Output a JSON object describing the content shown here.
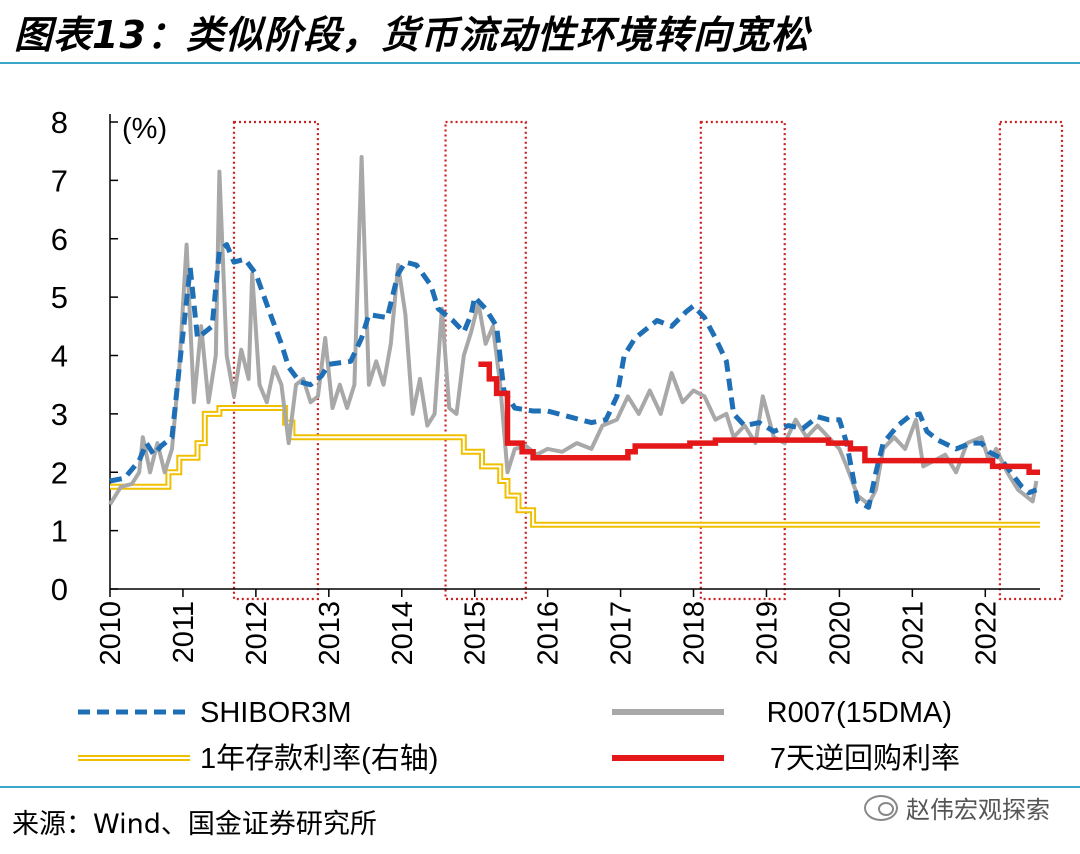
{
  "header": {
    "title": "图表13：类似阶段，货币流动性环境转向宽松"
  },
  "footer": {
    "source": "来源：Wind、国金证券研究所",
    "watermark": "赵伟宏观探索"
  },
  "chart_data": {
    "type": "line",
    "title": "图表13：类似阶段，货币流动性环境转向宽松",
    "unit_label": "(%)",
    "xlim": [
      2010,
      2022.75
    ],
    "ylim": [
      0,
      8
    ],
    "xticks": [
      "2010",
      "2011",
      "2012",
      "2013",
      "2014",
      "2015",
      "2016",
      "2017",
      "2018",
      "2019",
      "2020",
      "2021",
      "2022"
    ],
    "yticks": [
      "0",
      "1",
      "2",
      "3",
      "4",
      "5",
      "6",
      "7",
      "8"
    ],
    "grid": false,
    "legend_position": "bottom",
    "highlight_periods": [
      [
        2011.7,
        2012.85
      ],
      [
        2014.6,
        2015.7
      ],
      [
        2018.1,
        2019.25
      ],
      [
        2022.2,
        2023.1
      ]
    ],
    "highlight_color": "#cc1f1f",
    "series": [
      {
        "name": "SHIBOR3M",
        "color": "#1f6fb6",
        "style": "dashed",
        "points": [
          [
            2010.0,
            1.85
          ],
          [
            2010.2,
            1.9
          ],
          [
            2010.4,
            2.2
          ],
          [
            2010.5,
            2.5
          ],
          [
            2010.6,
            2.3
          ],
          [
            2010.7,
            2.45
          ],
          [
            2010.85,
            2.6
          ],
          [
            2010.95,
            3.8
          ],
          [
            2011.1,
            5.5
          ],
          [
            2011.2,
            4.3
          ],
          [
            2011.4,
            4.5
          ],
          [
            2011.5,
            5.8
          ],
          [
            2011.6,
            5.9
          ],
          [
            2011.7,
            5.6
          ],
          [
            2011.85,
            5.65
          ],
          [
            2012.0,
            5.4
          ],
          [
            2012.2,
            4.7
          ],
          [
            2012.35,
            4.2
          ],
          [
            2012.45,
            3.8
          ],
          [
            2012.6,
            3.55
          ],
          [
            2012.75,
            3.5
          ],
          [
            2012.9,
            3.65
          ],
          [
            2013.0,
            3.85
          ],
          [
            2013.3,
            3.9
          ],
          [
            2013.45,
            4.3
          ],
          [
            2013.55,
            4.7
          ],
          [
            2013.8,
            4.65
          ],
          [
            2013.95,
            5.4
          ],
          [
            2014.05,
            5.6
          ],
          [
            2014.2,
            5.55
          ],
          [
            2014.4,
            5.2
          ],
          [
            2014.5,
            4.8
          ],
          [
            2014.7,
            4.6
          ],
          [
            2014.85,
            4.4
          ],
          [
            2014.95,
            4.7
          ],
          [
            2015.0,
            5.0
          ],
          [
            2015.15,
            4.8
          ],
          [
            2015.3,
            4.5
          ],
          [
            2015.4,
            3.4
          ],
          [
            2015.55,
            3.1
          ],
          [
            2015.8,
            3.05
          ],
          [
            2016.0,
            3.05
          ],
          [
            2016.3,
            2.95
          ],
          [
            2016.6,
            2.85
          ],
          [
            2016.8,
            2.9
          ],
          [
            2016.95,
            3.3
          ],
          [
            2017.05,
            4.0
          ],
          [
            2017.2,
            4.3
          ],
          [
            2017.4,
            4.5
          ],
          [
            2017.5,
            4.6
          ],
          [
            2017.7,
            4.5
          ],
          [
            2017.9,
            4.75
          ],
          [
            2018.0,
            4.85
          ],
          [
            2018.15,
            4.65
          ],
          [
            2018.3,
            4.3
          ],
          [
            2018.45,
            3.9
          ],
          [
            2018.55,
            3.0
          ],
          [
            2018.7,
            2.8
          ],
          [
            2018.9,
            2.85
          ],
          [
            2019.1,
            2.7
          ],
          [
            2019.3,
            2.8
          ],
          [
            2019.5,
            2.75
          ],
          [
            2019.7,
            2.95
          ],
          [
            2019.85,
            2.9
          ],
          [
            2020.0,
            2.9
          ],
          [
            2020.1,
            2.5
          ],
          [
            2020.25,
            1.5
          ],
          [
            2020.4,
            1.4
          ],
          [
            2020.5,
            2.0
          ],
          [
            2020.6,
            2.5
          ],
          [
            2020.8,
            2.8
          ],
          [
            2020.95,
            2.95
          ],
          [
            2021.1,
            3.0
          ],
          [
            2021.2,
            2.7
          ],
          [
            2021.35,
            2.55
          ],
          [
            2021.6,
            2.4
          ],
          [
            2021.8,
            2.5
          ],
          [
            2021.95,
            2.5
          ],
          [
            2022.05,
            2.35
          ],
          [
            2022.2,
            2.25
          ],
          [
            2022.35,
            2.0
          ],
          [
            2022.5,
            1.75
          ],
          [
            2022.6,
            1.65
          ],
          [
            2022.7,
            1.7
          ]
        ]
      },
      {
        "name": "R007(15DMA)",
        "color": "#a8a8a8",
        "style": "solid",
        "points": [
          [
            2010.0,
            1.45
          ],
          [
            2010.15,
            1.75
          ],
          [
            2010.3,
            1.8
          ],
          [
            2010.4,
            2.0
          ],
          [
            2010.45,
            2.6
          ],
          [
            2010.55,
            2.0
          ],
          [
            2010.65,
            2.5
          ],
          [
            2010.75,
            2.0
          ],
          [
            2010.85,
            2.4
          ],
          [
            2010.95,
            3.8
          ],
          [
            2011.05,
            5.9
          ],
          [
            2011.15,
            3.2
          ],
          [
            2011.25,
            4.5
          ],
          [
            2011.35,
            3.2
          ],
          [
            2011.45,
            4.0
          ],
          [
            2011.5,
            7.15
          ],
          [
            2011.6,
            4.0
          ],
          [
            2011.7,
            3.3
          ],
          [
            2011.8,
            4.1
          ],
          [
            2011.9,
            3.6
          ],
          [
            2011.95,
            5.4
          ],
          [
            2012.05,
            3.5
          ],
          [
            2012.15,
            3.2
          ],
          [
            2012.25,
            3.8
          ],
          [
            2012.35,
            3.5
          ],
          [
            2012.45,
            2.5
          ],
          [
            2012.55,
            3.5
          ],
          [
            2012.65,
            3.6
          ],
          [
            2012.75,
            3.2
          ],
          [
            2012.85,
            3.3
          ],
          [
            2012.95,
            4.3
          ],
          [
            2013.05,
            3.1
          ],
          [
            2013.15,
            3.5
          ],
          [
            2013.25,
            3.1
          ],
          [
            2013.35,
            3.5
          ],
          [
            2013.45,
            7.4
          ],
          [
            2013.55,
            3.5
          ],
          [
            2013.65,
            3.9
          ],
          [
            2013.75,
            3.5
          ],
          [
            2013.85,
            4.2
          ],
          [
            2013.95,
            5.55
          ],
          [
            2014.05,
            4.7
          ],
          [
            2014.15,
            3.0
          ],
          [
            2014.25,
            3.6
          ],
          [
            2014.35,
            2.8
          ],
          [
            2014.45,
            3.0
          ],
          [
            2014.55,
            4.8
          ],
          [
            2014.65,
            3.1
          ],
          [
            2014.75,
            3.0
          ],
          [
            2014.85,
            4.0
          ],
          [
            2014.95,
            4.4
          ],
          [
            2015.05,
            4.9
          ],
          [
            2015.15,
            4.2
          ],
          [
            2015.25,
            4.5
          ],
          [
            2015.35,
            3.5
          ],
          [
            2015.45,
            2.0
          ],
          [
            2015.55,
            2.4
          ],
          [
            2015.7,
            2.45
          ],
          [
            2015.85,
            2.3
          ],
          [
            2016.0,
            2.4
          ],
          [
            2016.2,
            2.35
          ],
          [
            2016.4,
            2.5
          ],
          [
            2016.6,
            2.4
          ],
          [
            2016.75,
            2.8
          ],
          [
            2016.95,
            2.9
          ],
          [
            2017.1,
            3.3
          ],
          [
            2017.25,
            3.0
          ],
          [
            2017.4,
            3.4
          ],
          [
            2017.55,
            3.0
          ],
          [
            2017.7,
            3.7
          ],
          [
            2017.85,
            3.2
          ],
          [
            2018.0,
            3.4
          ],
          [
            2018.15,
            3.3
          ],
          [
            2018.3,
            2.9
          ],
          [
            2018.45,
            3.0
          ],
          [
            2018.55,
            2.6
          ],
          [
            2018.7,
            2.8
          ],
          [
            2018.85,
            2.5
          ],
          [
            2018.95,
            3.3
          ],
          [
            2019.1,
            2.6
          ],
          [
            2019.25,
            2.5
          ],
          [
            2019.4,
            2.9
          ],
          [
            2019.55,
            2.6
          ],
          [
            2019.7,
            2.8
          ],
          [
            2019.85,
            2.6
          ],
          [
            2020.0,
            2.4
          ],
          [
            2020.1,
            2.1
          ],
          [
            2020.25,
            1.6
          ],
          [
            2020.4,
            1.45
          ],
          [
            2020.5,
            1.7
          ],
          [
            2020.6,
            2.4
          ],
          [
            2020.75,
            2.6
          ],
          [
            2020.9,
            2.4
          ],
          [
            2021.05,
            2.9
          ],
          [
            2021.15,
            2.1
          ],
          [
            2021.3,
            2.2
          ],
          [
            2021.45,
            2.3
          ],
          [
            2021.6,
            2.0
          ],
          [
            2021.75,
            2.5
          ],
          [
            2021.95,
            2.6
          ],
          [
            2022.05,
            2.2
          ],
          [
            2022.15,
            2.4
          ],
          [
            2022.3,
            2.0
          ],
          [
            2022.45,
            1.7
          ],
          [
            2022.55,
            1.6
          ],
          [
            2022.65,
            1.5
          ],
          [
            2022.7,
            1.85
          ]
        ]
      },
      {
        "name": "1年存款利率(右轴)",
        "color": "#f0c000",
        "style": "double",
        "points": [
          [
            2010.0,
            1.75
          ],
          [
            2010.8,
            1.75
          ],
          [
            2010.8,
            2.0
          ],
          [
            2010.95,
            2.0
          ],
          [
            2010.95,
            2.25
          ],
          [
            2011.2,
            2.25
          ],
          [
            2011.2,
            2.5
          ],
          [
            2011.3,
            2.5
          ],
          [
            2011.3,
            3.0
          ],
          [
            2011.5,
            3.0
          ],
          [
            2011.5,
            3.1
          ],
          [
            2012.4,
            3.1
          ],
          [
            2012.4,
            2.85
          ],
          [
            2012.5,
            2.85
          ],
          [
            2012.5,
            2.6
          ],
          [
            2014.85,
            2.6
          ],
          [
            2014.85,
            2.35
          ],
          [
            2015.1,
            2.35
          ],
          [
            2015.1,
            2.1
          ],
          [
            2015.35,
            2.1
          ],
          [
            2015.35,
            1.85
          ],
          [
            2015.45,
            1.85
          ],
          [
            2015.45,
            1.6
          ],
          [
            2015.6,
            1.6
          ],
          [
            2015.6,
            1.35
          ],
          [
            2015.8,
            1.35
          ],
          [
            2015.8,
            1.1
          ],
          [
            2022.75,
            1.1
          ]
        ]
      },
      {
        "name": "7天逆回购利率",
        "color": "#e41818",
        "style": "solid",
        "points": [
          [
            2015.05,
            3.85
          ],
          [
            2015.2,
            3.85
          ],
          [
            2015.2,
            3.6
          ],
          [
            2015.3,
            3.6
          ],
          [
            2015.3,
            3.35
          ],
          [
            2015.45,
            3.35
          ],
          [
            2015.45,
            2.5
          ],
          [
            2015.65,
            2.5
          ],
          [
            2015.65,
            2.35
          ],
          [
            2015.8,
            2.35
          ],
          [
            2015.8,
            2.25
          ],
          [
            2017.1,
            2.25
          ],
          [
            2017.1,
            2.35
          ],
          [
            2017.2,
            2.35
          ],
          [
            2017.2,
            2.45
          ],
          [
            2017.95,
            2.45
          ],
          [
            2017.95,
            2.5
          ],
          [
            2018.3,
            2.5
          ],
          [
            2018.3,
            2.55
          ],
          [
            2019.85,
            2.55
          ],
          [
            2019.85,
            2.5
          ],
          [
            2020.15,
            2.5
          ],
          [
            2020.15,
            2.4
          ],
          [
            2020.35,
            2.4
          ],
          [
            2020.35,
            2.2
          ],
          [
            2022.1,
            2.2
          ],
          [
            2022.1,
            2.1
          ],
          [
            2022.6,
            2.1
          ],
          [
            2022.6,
            2.0
          ],
          [
            2022.75,
            2.0
          ]
        ]
      }
    ]
  }
}
